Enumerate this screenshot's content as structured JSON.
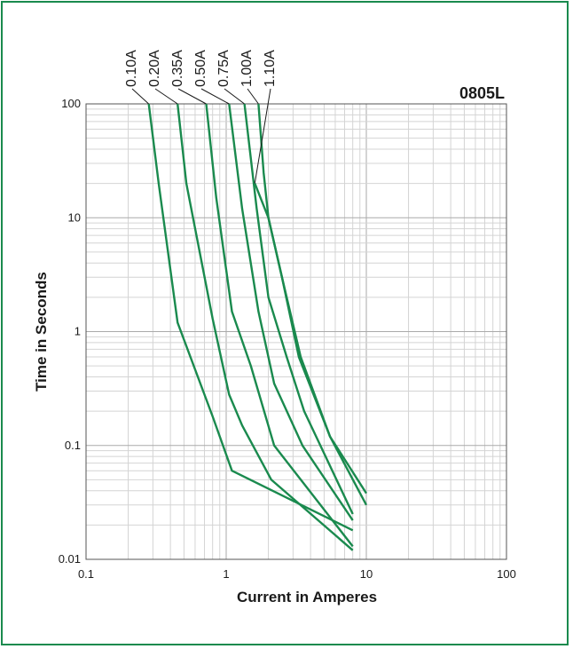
{
  "chart_data": {
    "type": "line",
    "title": "0805L",
    "xlabel": "Current in Amperes",
    "ylabel": "Time in Seconds",
    "x_scale": "log",
    "y_scale": "log",
    "xlim": [
      0.1,
      100
    ],
    "ylim": [
      0.01,
      100
    ],
    "x_ticks": [
      "0.1",
      "1",
      "10",
      "100"
    ],
    "y_ticks": [
      "0.01",
      "0.1",
      "1",
      "10",
      "100"
    ],
    "grid": true,
    "series": [
      {
        "name": "0.10A",
        "points": [
          [
            0.28,
            100
          ],
          [
            0.33,
            20
          ],
          [
            0.45,
            1.2
          ],
          [
            0.8,
            0.18
          ],
          [
            1.1,
            0.06
          ],
          [
            8,
            0.018
          ]
        ]
      },
      {
        "name": "0.20A",
        "points": [
          [
            0.45,
            100
          ],
          [
            0.52,
            20
          ],
          [
            0.8,
            1.3
          ],
          [
            1.05,
            0.28
          ],
          [
            1.3,
            0.15
          ],
          [
            2.1,
            0.05
          ],
          [
            8,
            0.012
          ]
        ]
      },
      {
        "name": "0.35A",
        "points": [
          [
            0.72,
            100
          ],
          [
            0.85,
            15
          ],
          [
            1.1,
            1.5
          ],
          [
            1.5,
            0.5
          ],
          [
            2.2,
            0.1
          ],
          [
            8,
            0.013
          ]
        ]
      },
      {
        "name": "0.50A",
        "points": [
          [
            1.05,
            100
          ],
          [
            1.3,
            12
          ],
          [
            1.7,
            1.5
          ],
          [
            2.2,
            0.35
          ],
          [
            3.5,
            0.1
          ],
          [
            8,
            0.022
          ]
        ]
      },
      {
        "name": "0.75A",
        "points": [
          [
            1.35,
            100
          ],
          [
            1.65,
            12
          ],
          [
            2.0,
            2.0
          ],
          [
            2.7,
            0.6
          ],
          [
            3.6,
            0.2
          ],
          [
            8,
            0.025
          ]
        ]
      },
      {
        "name": "1.00A",
        "points": [
          [
            1.7,
            100
          ],
          [
            1.85,
            25
          ],
          [
            2.0,
            10
          ],
          [
            2.5,
            3.0
          ],
          [
            3.3,
            0.6
          ],
          [
            5.5,
            0.12
          ],
          [
            10,
            0.03
          ]
        ]
      },
      {
        "name": "1.10A",
        "points": [
          [
            1.6,
            20
          ],
          [
            2.0,
            10
          ],
          [
            2.5,
            3.0
          ],
          [
            3.4,
            0.6
          ],
          [
            5.5,
            0.12
          ],
          [
            10,
            0.038
          ]
        ]
      }
    ],
    "labels": [
      "0.10A",
      "0.20A",
      "0.35A",
      "0.50A",
      "0.75A",
      "1.00A",
      "1.10A"
    ],
    "line_color": "#1a8a4e"
  }
}
